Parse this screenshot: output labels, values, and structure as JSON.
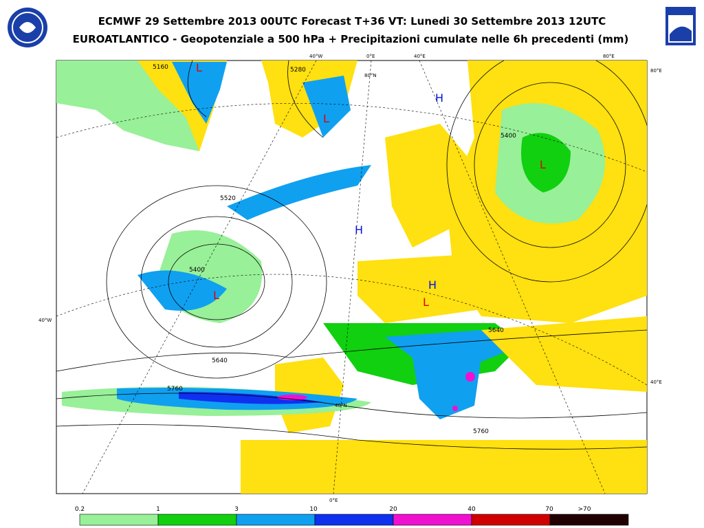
{
  "header": {
    "title": "ECMWF 29 Settembre 2013 00UTC Forecast T+36 VT: Lunedi 30 Settembre 2013 12UTC",
    "subtitle": "EUROATLANTICO - Geopotenziale a 500 hPa + Precipitazioni cumulate nelle 6h precedenti (mm)"
  },
  "map": {
    "lon_labels": [
      "40°W",
      "0°E",
      "40°E",
      "80°E",
      "0°E"
    ],
    "lat_labels": [
      "80°E",
      "80°N",
      "40°E",
      "40°N",
      "40°W"
    ],
    "contour_labels": [
      "5520",
      "5640",
      "5760",
      "5640",
      "5760",
      "5400",
      "5400",
      "5160",
      "5280"
    ],
    "centers": [
      "L",
      "L",
      "L",
      "L",
      "L",
      "H",
      "H",
      "H"
    ]
  },
  "legend": {
    "labels": [
      "0.2",
      "1",
      "3",
      "10",
      "20",
      "40",
      "70",
      ">70"
    ]
  }
}
